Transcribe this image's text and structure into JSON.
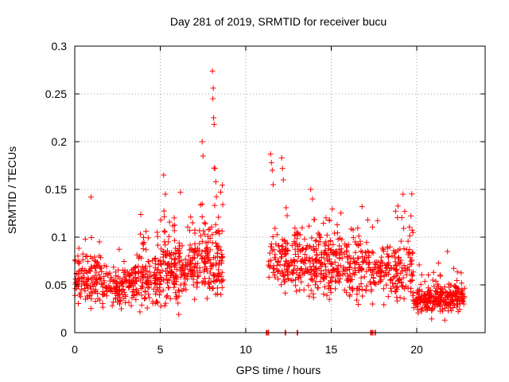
{
  "chart_data": {
    "type": "scatter",
    "title": "Day 281 of 2019, SRMTID for receiver bucu",
    "xlabel": "GPS time / hours",
    "ylabel": "SRMTID / TECUs",
    "xlim": [
      0,
      24
    ],
    "ylim": [
      0,
      0.3
    ],
    "x_ticks": [
      0,
      5,
      10,
      15,
      20
    ],
    "x_tick_labels": [
      "0",
      "5",
      "10",
      "15",
      "20"
    ],
    "y_ticks": [
      0,
      0.05,
      0.1,
      0.15,
      0.2,
      0.25,
      0.3
    ],
    "y_tick_labels": [
      "0",
      "0.05",
      "0.1",
      "0.15",
      "0.2",
      "0.25",
      "0.3"
    ],
    "grid": true,
    "marker": "plus",
    "colors": {
      "series": "#ff0000",
      "grid": "#a0a0a0",
      "axis": "#000000"
    },
    "series": [
      {
        "name": "SRMTID",
        "clusters": [
          {
            "x_range": [
              0.0,
              1.5
            ],
            "mean": 0.055,
            "spread": 0.018,
            "count": 120
          },
          {
            "x_range": [
              1.5,
              3.5
            ],
            "mean": 0.048,
            "spread": 0.012,
            "count": 150
          },
          {
            "x_range": [
              3.5,
              5.0
            ],
            "mean": 0.055,
            "spread": 0.018,
            "count": 130
          },
          {
            "x_range": [
              5.0,
              7.0
            ],
            "mean": 0.068,
            "spread": 0.022,
            "count": 190
          },
          {
            "x_range": [
              7.0,
              8.7
            ],
            "mean": 0.075,
            "spread": 0.025,
            "count": 160
          },
          {
            "x_range": [
              11.3,
              12.5
            ],
            "mean": 0.072,
            "spread": 0.02,
            "count": 90
          },
          {
            "x_range": [
              12.5,
              14.5
            ],
            "mean": 0.072,
            "spread": 0.02,
            "count": 150
          },
          {
            "x_range": [
              14.5,
              16.5
            ],
            "mean": 0.07,
            "spread": 0.02,
            "count": 170
          },
          {
            "x_range": [
              16.5,
              18.5
            ],
            "mean": 0.068,
            "spread": 0.02,
            "count": 130
          },
          {
            "x_range": [
              18.5,
              19.8
            ],
            "mean": 0.065,
            "spread": 0.02,
            "count": 100
          },
          {
            "x_range": [
              19.8,
              22.8
            ],
            "mean": 0.036,
            "spread": 0.01,
            "count": 260
          }
        ],
        "outliers": [
          {
            "x": 0.95,
            "y": 0.142
          },
          {
            "x": 5.2,
            "y": 0.165
          },
          {
            "x": 5.3,
            "y": 0.145
          },
          {
            "x": 7.45,
            "y": 0.2
          },
          {
            "x": 7.5,
            "y": 0.185
          },
          {
            "x": 8.05,
            "y": 0.274
          },
          {
            "x": 8.1,
            "y": 0.256
          },
          {
            "x": 8.08,
            "y": 0.245
          },
          {
            "x": 8.12,
            "y": 0.225
          },
          {
            "x": 8.15,
            "y": 0.218
          },
          {
            "x": 8.2,
            "y": 0.172
          },
          {
            "x": 8.25,
            "y": 0.158
          },
          {
            "x": 11.45,
            "y": 0.187
          },
          {
            "x": 11.5,
            "y": 0.178
          },
          {
            "x": 11.55,
            "y": 0.17
          },
          {
            "x": 11.6,
            "y": 0.155
          },
          {
            "x": 12.1,
            "y": 0.183
          },
          {
            "x": 12.15,
            "y": 0.172
          },
          {
            "x": 12.2,
            "y": 0.16
          },
          {
            "x": 13.8,
            "y": 0.15
          },
          {
            "x": 13.9,
            "y": 0.14
          },
          {
            "x": 16.8,
            "y": 0.132
          },
          {
            "x": 19.2,
            "y": 0.145
          },
          {
            "x": 19.3,
            "y": 0.127
          },
          {
            "x": 21.8,
            "y": 0.085
          }
        ],
        "zero_points": [
          11.2,
          11.3,
          12.3,
          13.0,
          17.3,
          17.4,
          17.55
        ]
      }
    ]
  }
}
